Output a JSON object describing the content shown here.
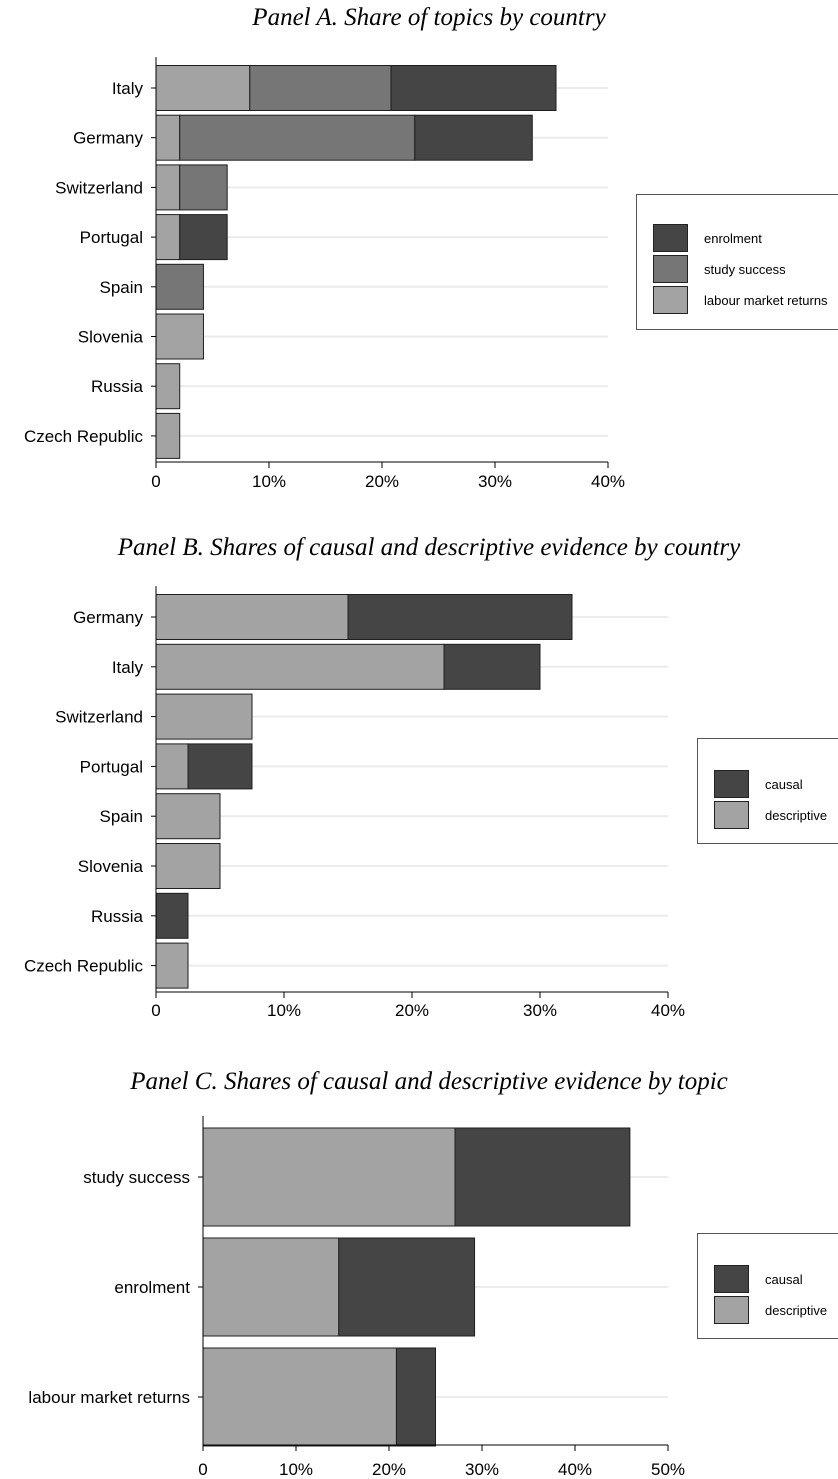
{
  "colors": {
    "dark": "#454545",
    "mid": "#767676",
    "light": "#a3a3a3",
    "grid": "#ececec",
    "edge": "#1f1f1f"
  },
  "panelA": {
    "title": "Panel A. Share of topics by country",
    "legend": [
      {
        "label": "enrolment",
        "color": "#454545"
      },
      {
        "label": "study success",
        "color": "#767676"
      },
      {
        "label": "labour market returns",
        "color": "#a3a3a3"
      }
    ]
  },
  "panelB": {
    "title": "Panel B. Shares of causal and descriptive evidence by country",
    "legend": [
      {
        "label": "causal",
        "color": "#454545"
      },
      {
        "label": "descriptive",
        "color": "#a3a3a3"
      }
    ]
  },
  "panelC": {
    "title": "Panel C. Shares of causal and descriptive evidence by topic",
    "legend": [
      {
        "label": "causal",
        "color": "#454545"
      },
      {
        "label": "descriptive",
        "color": "#a3a3a3"
      }
    ]
  },
  "chart_data": [
    {
      "type": "bar",
      "orientation": "horizontal",
      "stacked": true,
      "title": "Panel A. Share of topics by country",
      "categories": [
        "Italy",
        "Germany",
        "Switzerland",
        "Portugal",
        "Spain",
        "Slovenia",
        "Russia",
        "Czech Republic"
      ],
      "series": [
        {
          "name": "labour market returns",
          "color": "#a3a3a3",
          "values": [
            8.3,
            2.1,
            2.1,
            2.1,
            0,
            4.2,
            2.1,
            2.1
          ]
        },
        {
          "name": "study success",
          "color": "#767676",
          "values": [
            12.5,
            20.8,
            4.2,
            0,
            4.2,
            0,
            0,
            0
          ]
        },
        {
          "name": "enrolment",
          "color": "#454545",
          "values": [
            14.6,
            10.4,
            0,
            4.2,
            0,
            0,
            0,
            0
          ]
        }
      ],
      "xlim": [
        0,
        40
      ],
      "xticks": [
        "0",
        "10%",
        "20%",
        "30%",
        "40%"
      ],
      "legend_position": "right"
    },
    {
      "type": "bar",
      "orientation": "horizontal",
      "stacked": true,
      "title": "Panel B. Shares of causal and descriptive evidence by country",
      "categories": [
        "Germany",
        "Italy",
        "Switzerland",
        "Portugal",
        "Spain",
        "Slovenia",
        "Russia",
        "Czech Republic"
      ],
      "series": [
        {
          "name": "descriptive",
          "color": "#a3a3a3",
          "values": [
            15,
            22.5,
            7.5,
            2.5,
            5,
            5,
            0,
            2.5
          ]
        },
        {
          "name": "causal",
          "color": "#454545",
          "values": [
            17.5,
            7.5,
            0,
            5,
            0,
            0,
            2.5,
            0
          ]
        }
      ],
      "xlim": [
        0,
        40
      ],
      "xticks": [
        "0",
        "10%",
        "20%",
        "30%",
        "40%"
      ],
      "legend_position": "right"
    },
    {
      "type": "bar",
      "orientation": "horizontal",
      "stacked": true,
      "title": "Panel C. Shares of causal and descriptive evidence by topic",
      "categories": [
        "study success",
        "enrolment",
        "labour market returns"
      ],
      "series": [
        {
          "name": "descriptive",
          "color": "#a3a3a3",
          "values": [
            27.1,
            14.6,
            20.8
          ]
        },
        {
          "name": "causal",
          "color": "#454545",
          "values": [
            18.8,
            14.6,
            4.2
          ]
        }
      ],
      "xlim": [
        0,
        50
      ],
      "xticks": [
        "0",
        "10%",
        "20%",
        "30%",
        "40%",
        "50%"
      ],
      "legend_position": "right"
    }
  ]
}
